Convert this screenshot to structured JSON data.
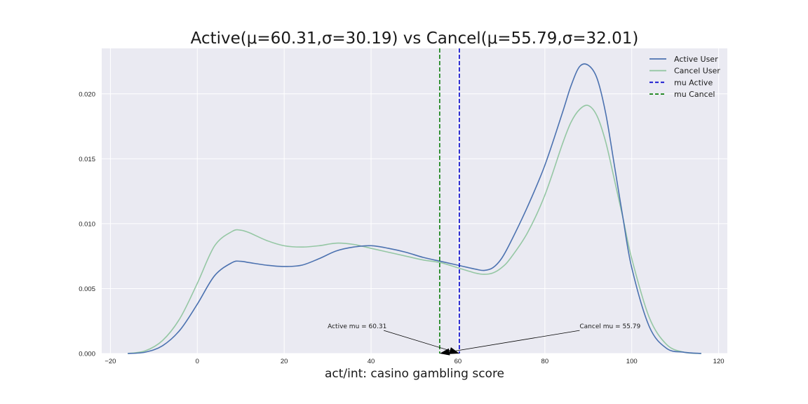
{
  "chart_data": {
    "type": "line",
    "title": "Active(μ=60.31,σ=30.19) vs Cancel(μ=55.79,σ=32.01)",
    "xlabel": "act/int: casino gambling score",
    "ylabel": "",
    "xlim": [
      -22,
      122
    ],
    "ylim": [
      0,
      0.0235
    ],
    "x_ticks": [
      -20,
      0,
      20,
      40,
      60,
      80,
      100,
      120
    ],
    "x_tick_labels": [
      "−20",
      "0",
      "20",
      "40",
      "60",
      "80",
      "100",
      "120"
    ],
    "y_ticks": [
      0,
      0.005,
      0.01,
      0.015,
      0.02
    ],
    "y_tick_labels": [
      "0.000",
      "0.005",
      "0.010",
      "0.015",
      "0.020"
    ],
    "grid": true,
    "legend_position": "top-right",
    "series": [
      {
        "name": "Active User",
        "color": "#4c72b0",
        "x": [
          -16,
          -12,
          -8,
          -4,
          0,
          4,
          8,
          10,
          12,
          16,
          20,
          24,
          28,
          32,
          36,
          40,
          44,
          48,
          52,
          56,
          60,
          64,
          66,
          68,
          70,
          72,
          76,
          80,
          84,
          86,
          88,
          90,
          92,
          94,
          96,
          98,
          100,
          104,
          108,
          112,
          116
        ],
        "y": [
          0.0,
          0.0001,
          0.0006,
          0.0018,
          0.0038,
          0.006,
          0.007,
          0.0071,
          0.007,
          0.0068,
          0.0067,
          0.0068,
          0.0073,
          0.0079,
          0.0082,
          0.0083,
          0.0081,
          0.0078,
          0.0074,
          0.0071,
          0.0068,
          0.0065,
          0.0064,
          0.0066,
          0.0073,
          0.0085,
          0.0113,
          0.0145,
          0.0185,
          0.0206,
          0.0221,
          0.0222,
          0.0212,
          0.0185,
          0.0145,
          0.0104,
          0.0066,
          0.0021,
          0.0004,
          0.0001,
          0.0
        ]
      },
      {
        "name": "Cancel User",
        "color": "#95c7a4",
        "x": [
          -16,
          -12,
          -8,
          -4,
          0,
          4,
          8,
          10,
          12,
          16,
          20,
          24,
          28,
          32,
          36,
          40,
          44,
          48,
          52,
          56,
          60,
          64,
          66,
          68,
          70,
          72,
          76,
          80,
          84,
          86,
          88,
          90,
          92,
          94,
          96,
          98,
          100,
          104,
          108,
          112,
          116
        ],
        "y": [
          0.0,
          0.0002,
          0.001,
          0.0027,
          0.0054,
          0.0083,
          0.0094,
          0.0095,
          0.0093,
          0.0087,
          0.0083,
          0.0082,
          0.0083,
          0.0085,
          0.0084,
          0.0081,
          0.0078,
          0.0075,
          0.0072,
          0.007,
          0.0066,
          0.0062,
          0.0061,
          0.0062,
          0.0066,
          0.0073,
          0.0093,
          0.0122,
          0.0161,
          0.0178,
          0.0188,
          0.0191,
          0.0183,
          0.0163,
          0.0134,
          0.0104,
          0.0073,
          0.0028,
          0.0007,
          0.0001,
          0.0
        ]
      }
    ],
    "vlines": [
      {
        "name": "mu Active",
        "x": 60.31,
        "color": "#0000cc"
      },
      {
        "name": "mu Cancel",
        "x": 55.79,
        "color": "#0f7f0f"
      }
    ],
    "annotations": [
      {
        "text": "Active mu = 60.31",
        "text_x": 30,
        "text_y": 0.0021,
        "point_x": 60.31,
        "point_y": 0.0
      },
      {
        "text": "Cancel mu = 55.79",
        "text_x": 88,
        "text_y": 0.0021,
        "point_x": 55.79,
        "point_y": 0.0
      }
    ],
    "colors": {
      "plot_background": "#eaeaf2",
      "grid": "#ffffff"
    }
  }
}
